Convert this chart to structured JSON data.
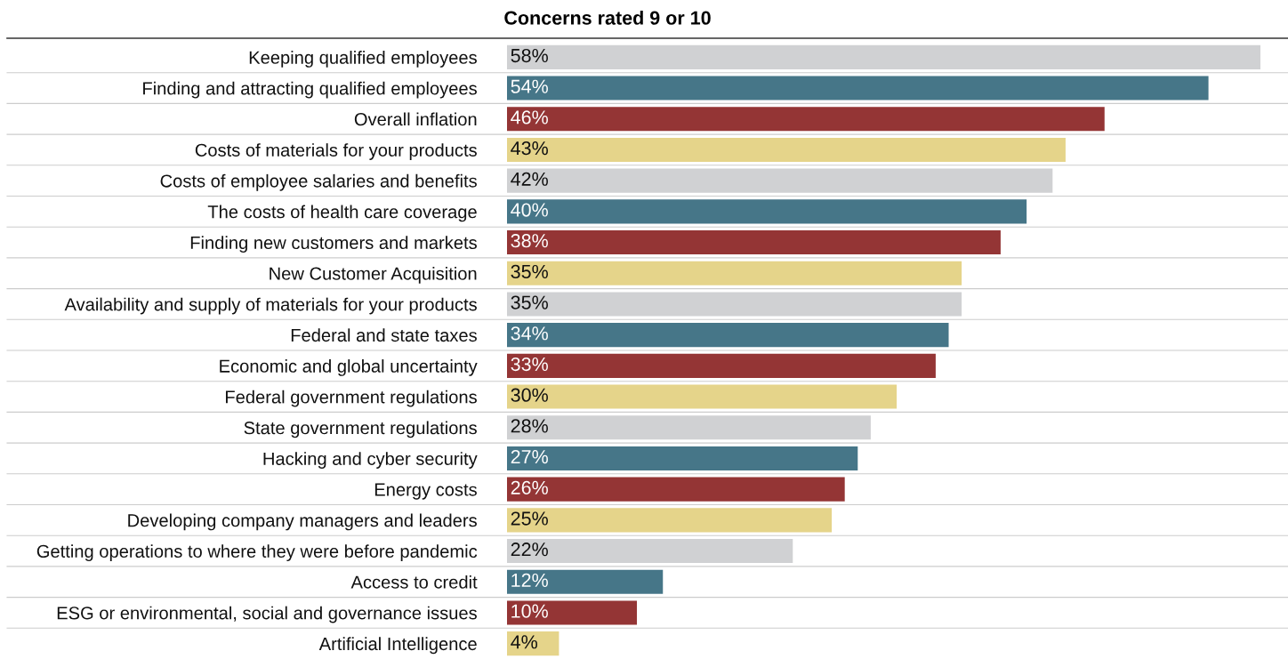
{
  "chart_data": {
    "type": "bar",
    "orientation": "horizontal",
    "title": "Concerns rated 9 or 10",
    "categories": [
      "Keeping qualified employees",
      "Finding and attracting qualified employees",
      "Overall inflation",
      "Costs of materials for your products",
      "Costs of employee salaries and benefits",
      "The costs of health care coverage",
      "Finding new customers and markets",
      "New Customer Acquisition",
      "Availability and supply of materials for your products",
      "Federal and state taxes",
      "Economic and global uncertainty",
      "Federal government regulations",
      "State government regulations",
      "Hacking and cyber security",
      "Energy costs",
      "Developing company managers and leaders",
      "Getting operations to where they were before pandemic",
      "Access to credit",
      "ESG or environmental, social and governance issues",
      "Artificial Intelligence"
    ],
    "values": [
      58,
      54,
      46,
      43,
      42,
      40,
      38,
      35,
      35,
      34,
      33,
      30,
      28,
      27,
      26,
      25,
      22,
      12,
      10,
      4
    ],
    "value_labels": [
      "58%",
      "54%",
      "46%",
      "43%",
      "42%",
      "40%",
      "38%",
      "35%",
      "35%",
      "34%",
      "33%",
      "30%",
      "28%",
      "27%",
      "26%",
      "25%",
      "22%",
      "12%",
      "10%",
      "4%"
    ],
    "colors": [
      "#d0d1d3",
      "#467688",
      "#943535",
      "#e5d48a",
      "#d0d1d3",
      "#467688",
      "#943535",
      "#e5d48a",
      "#d0d1d3",
      "#467688",
      "#943535",
      "#e5d48a",
      "#d0d1d3",
      "#467688",
      "#943535",
      "#e5d48a",
      "#d0d1d3",
      "#467688",
      "#943535",
      "#e5d48a"
    ],
    "relative": false,
    "grid": "y",
    "legend": false
  }
}
